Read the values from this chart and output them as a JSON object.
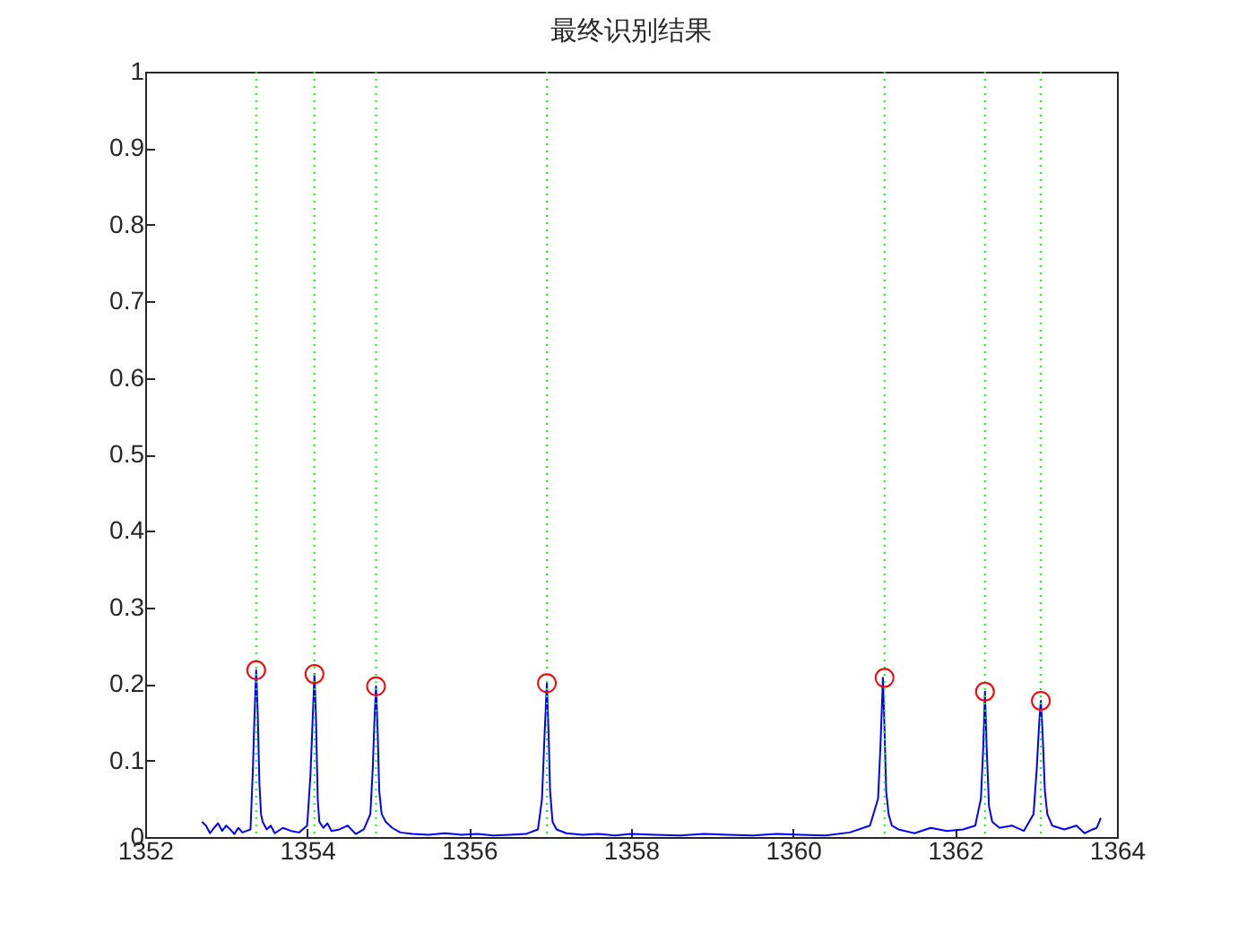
{
  "chart_data": {
    "type": "line",
    "title": "最终识别结果",
    "xlim": [
      1352,
      1364
    ],
    "xticks": [
      1352,
      1354,
      1356,
      1358,
      1360,
      1362,
      1364
    ],
    "ylim": [
      0,
      1
    ],
    "yticks": [
      0,
      0.1,
      0.2,
      0.3,
      0.4,
      0.5,
      0.6,
      0.7,
      0.8,
      0.9,
      1
    ],
    "series": [
      {
        "type": "line",
        "color": "#0000ff",
        "marker": "none",
        "line_style": "solid",
        "x": [
          1352.7,
          1352.75,
          1352.8,
          1352.85,
          1352.9,
          1352.95,
          1353.0,
          1353.05,
          1353.1,
          1353.15,
          1353.2,
          1353.25,
          1353.3,
          1353.33,
          1353.35,
          1353.37,
          1353.39,
          1353.41,
          1353.43,
          1353.45,
          1353.5,
          1353.55,
          1353.6,
          1353.7,
          1353.8,
          1353.9,
          1354.0,
          1354.04,
          1354.07,
          1354.09,
          1354.11,
          1354.13,
          1354.15,
          1354.2,
          1354.25,
          1354.3,
          1354.4,
          1354.5,
          1354.6,
          1354.7,
          1354.78,
          1354.81,
          1354.83,
          1354.85,
          1354.87,
          1354.89,
          1354.92,
          1354.97,
          1355.05,
          1355.15,
          1355.3,
          1355.5,
          1355.7,
          1355.9,
          1356.1,
          1356.3,
          1356.5,
          1356.7,
          1356.85,
          1356.9,
          1356.93,
          1356.96,
          1356.98,
          1357.0,
          1357.03,
          1357.08,
          1357.2,
          1357.4,
          1357.6,
          1357.8,
          1358.0,
          1358.3,
          1358.6,
          1358.9,
          1359.2,
          1359.5,
          1359.8,
          1360.1,
          1360.4,
          1360.7,
          1360.95,
          1361.05,
          1361.08,
          1361.11,
          1361.13,
          1361.15,
          1361.18,
          1361.22,
          1361.3,
          1361.5,
          1361.7,
          1361.9,
          1362.1,
          1362.25,
          1362.32,
          1362.35,
          1362.37,
          1362.39,
          1362.42,
          1362.46,
          1362.55,
          1362.7,
          1362.85,
          1362.97,
          1363.01,
          1363.04,
          1363.06,
          1363.08,
          1363.11,
          1363.14,
          1363.2,
          1363.35,
          1363.5,
          1363.6,
          1363.7,
          1363.75,
          1363.8
        ],
        "values": [
          0.02,
          0.015,
          0.005,
          0.012,
          0.018,
          0.008,
          0.015,
          0.01,
          0.004,
          0.012,
          0.006,
          0.008,
          0.01,
          0.09,
          0.16,
          0.218,
          0.16,
          0.07,
          0.03,
          0.02,
          0.01,
          0.015,
          0.005,
          0.012,
          0.008,
          0.006,
          0.015,
          0.08,
          0.16,
          0.213,
          0.15,
          0.05,
          0.02,
          0.012,
          0.018,
          0.008,
          0.01,
          0.015,
          0.004,
          0.01,
          0.03,
          0.09,
          0.15,
          0.197,
          0.14,
          0.06,
          0.03,
          0.02,
          0.012,
          0.006,
          0.004,
          0.003,
          0.005,
          0.003,
          0.004,
          0.002,
          0.003,
          0.004,
          0.01,
          0.05,
          0.13,
          0.201,
          0.14,
          0.06,
          0.02,
          0.01,
          0.005,
          0.003,
          0.004,
          0.002,
          0.004,
          0.003,
          0.002,
          0.004,
          0.003,
          0.002,
          0.004,
          0.003,
          0.002,
          0.006,
          0.015,
          0.05,
          0.12,
          0.208,
          0.14,
          0.06,
          0.03,
          0.015,
          0.01,
          0.005,
          0.012,
          0.008,
          0.01,
          0.015,
          0.05,
          0.12,
          0.19,
          0.12,
          0.04,
          0.02,
          0.012,
          0.015,
          0.008,
          0.03,
          0.09,
          0.15,
          0.178,
          0.14,
          0.06,
          0.03,
          0.015,
          0.01,
          0.015,
          0.005,
          0.01,
          0.012,
          0.025
        ]
      },
      {
        "type": "scatter",
        "color": "#ff0000",
        "marker": "circle",
        "x": [
          1353.37,
          1354.09,
          1354.85,
          1356.96,
          1361.13,
          1362.37,
          1363.06
        ],
        "values": [
          0.218,
          0.213,
          0.197,
          0.201,
          0.208,
          0.19,
          0.178
        ]
      }
    ],
    "ref_lines": [
      {
        "axis": "x",
        "value": 1353.37,
        "color": "#00ff00",
        "line_style": "dotted"
      },
      {
        "axis": "x",
        "value": 1354.09,
        "color": "#00ff00",
        "line_style": "dotted"
      },
      {
        "axis": "x",
        "value": 1354.85,
        "color": "#00ff00",
        "line_style": "dotted"
      },
      {
        "axis": "x",
        "value": 1356.96,
        "color": "#00ff00",
        "line_style": "dotted"
      },
      {
        "axis": "x",
        "value": 1361.13,
        "color": "#00ff00",
        "line_style": "dotted"
      },
      {
        "axis": "x",
        "value": 1362.37,
        "color": "#00ff00",
        "line_style": "dotted"
      },
      {
        "axis": "x",
        "value": 1363.06,
        "color": "#00ff00",
        "line_style": "dotted"
      }
    ]
  }
}
